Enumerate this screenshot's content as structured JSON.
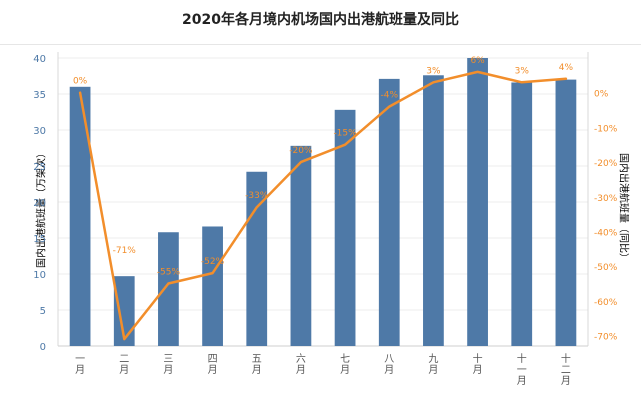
{
  "chart_data": {
    "type": "bar",
    "title": "2020年各月境内机场国内出港航班量及同比",
    "categories": [
      "一月",
      "二月",
      "三月",
      "四月",
      "五月",
      "六月",
      "七月",
      "八月",
      "九月",
      "十月",
      "十一月",
      "十二月"
    ],
    "series": [
      {
        "type": "bar",
        "axis": "left",
        "values": [
          36.0,
          9.7,
          15.8,
          16.6,
          24.2,
          27.8,
          32.8,
          37.1,
          37.6,
          40.0,
          36.6,
          37.0
        ],
        "color": "#4e79a7"
      },
      {
        "type": "line",
        "axis": "right",
        "values": [
          0,
          -71,
          -55,
          -52,
          -33,
          -20,
          -15,
          -4,
          3,
          6,
          3,
          4
        ],
        "labels": [
          "0%",
          "-71%",
          "-55%",
          "-52%",
          "-33%",
          "-20%",
          "-15%",
          "-4%",
          "3%",
          "6%",
          "3%",
          "4%"
        ],
        "color": "#f28e2b"
      }
    ],
    "y_left": {
      "label": "国内出港航班量（万架次）",
      "range": [
        0,
        40
      ],
      "ticks": [
        "0",
        "5",
        "10",
        "15",
        "20",
        "25",
        "30",
        "35",
        "40"
      ],
      "color": "#4e79a7"
    },
    "y_right": {
      "label": "国内出港航班量（同比）",
      "range": [
        -73,
        10
      ],
      "ticks": [
        "0%",
        "-10%",
        "-20%",
        "-30%",
        "-40%",
        "-50%",
        "-60%",
        "-70%"
      ],
      "tick_values": [
        0,
        -10,
        -20,
        -30,
        -40,
        -50,
        -60,
        -70
      ],
      "color": "#f28e2b"
    },
    "grid": true
  }
}
